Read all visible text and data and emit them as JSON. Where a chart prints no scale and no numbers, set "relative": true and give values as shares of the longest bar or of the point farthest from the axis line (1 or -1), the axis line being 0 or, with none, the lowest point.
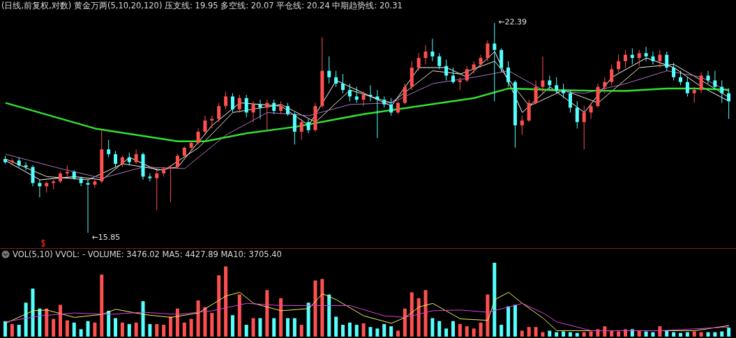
{
  "chart_data": [
    {
      "type": "candlestick",
      "title": "(日线,前复权,对数)  黄金万两(5,10,20,120)  压支线: 19.95  多空线: 20.07  平仓线: 20.24  中期趋势线: 20.31",
      "categories": [
        null,
        null,
        null,
        null,
        null,
        null,
        null,
        null,
        null,
        null,
        null,
        null,
        null,
        null,
        null,
        null,
        null,
        null,
        null,
        null,
        null,
        null,
        null,
        null,
        null,
        null,
        null,
        null,
        null,
        null,
        null,
        null,
        null,
        null,
        null,
        null,
        null,
        null,
        null,
        null,
        null,
        null,
        null,
        null,
        null,
        null,
        null,
        null,
        null,
        null,
        null,
        null,
        null,
        null,
        null,
        null,
        null,
        null,
        null,
        null,
        null,
        null,
        null,
        null,
        null,
        null,
        null,
        null,
        null,
        null,
        null,
        null,
        null,
        null,
        null,
        null,
        null,
        null,
        null,
        null,
        null,
        null,
        null,
        null,
        null,
        null,
        null,
        null,
        null,
        null,
        null,
        null,
        null,
        null,
        null,
        null,
        null,
        null,
        null,
        null,
        null,
        null,
        null,
        null,
        null,
        null
      ],
      "ohlc": [
        [
          18.15,
          18.25,
          18.0,
          18.05
        ],
        [
          18.05,
          18.15,
          17.95,
          18.1
        ],
        [
          18.1,
          18.2,
          17.9,
          17.95
        ],
        [
          17.95,
          18.05,
          17.8,
          17.9
        ],
        [
          17.9,
          17.95,
          17.3,
          17.4
        ],
        [
          17.4,
          17.5,
          16.95,
          17.3
        ],
        [
          17.3,
          17.45,
          17.1,
          17.4
        ],
        [
          17.4,
          17.5,
          17.2,
          17.45
        ],
        [
          17.45,
          17.75,
          17.4,
          17.7
        ],
        [
          17.7,
          17.95,
          17.6,
          17.75
        ],
        [
          17.75,
          17.8,
          17.5,
          17.55
        ],
        [
          17.55,
          17.6,
          17.3,
          17.4
        ],
        [
          17.4,
          17.5,
          15.85,
          17.35
        ],
        [
          17.35,
          17.5,
          17.25,
          17.45
        ],
        [
          17.45,
          19.05,
          17.4,
          18.45
        ],
        [
          18.45,
          18.75,
          18.2,
          18.3
        ],
        [
          18.3,
          18.4,
          17.9,
          18.0
        ],
        [
          18.0,
          18.25,
          17.9,
          18.2
        ],
        [
          18.2,
          18.35,
          17.95,
          18.05
        ],
        [
          18.05,
          18.45,
          18.0,
          18.3
        ],
        [
          18.3,
          18.35,
          17.5,
          17.6
        ],
        [
          17.6,
          17.7,
          17.45,
          17.55
        ],
        [
          17.55,
          17.8,
          16.55,
          17.7
        ],
        [
          17.7,
          17.9,
          17.6,
          17.85
        ],
        [
          17.85,
          17.95,
          16.8,
          17.9
        ],
        [
          17.9,
          18.3,
          17.85,
          18.25
        ],
        [
          18.25,
          18.55,
          18.2,
          18.5
        ],
        [
          18.5,
          18.7,
          18.4,
          18.65
        ],
        [
          18.65,
          19.1,
          18.6,
          19.0
        ],
        [
          19.0,
          19.5,
          18.9,
          19.35
        ],
        [
          19.35,
          19.5,
          19.1,
          19.4
        ],
        [
          19.4,
          19.9,
          19.3,
          19.8
        ],
        [
          19.8,
          20.25,
          19.7,
          20.1
        ],
        [
          20.1,
          20.2,
          19.6,
          19.7
        ],
        [
          19.7,
          20.15,
          19.6,
          20.05
        ],
        [
          20.05,
          20.15,
          19.45,
          19.6
        ],
        [
          19.6,
          19.95,
          19.3,
          19.85
        ],
        [
          19.85,
          20.0,
          19.4,
          19.75
        ],
        [
          19.75,
          20.0,
          19.05,
          19.9
        ],
        [
          19.9,
          20.0,
          19.55,
          19.65
        ],
        [
          19.65,
          19.95,
          19.55,
          19.8
        ],
        [
          19.8,
          19.9,
          19.5,
          19.55
        ],
        [
          19.55,
          19.6,
          18.6,
          19.0
        ],
        [
          19.0,
          19.4,
          18.75,
          19.3
        ],
        [
          19.3,
          19.4,
          18.95,
          19.05
        ],
        [
          19.05,
          19.9,
          19.0,
          19.8
        ],
        [
          19.8,
          21.95,
          19.75,
          20.9
        ],
        [
          20.9,
          21.35,
          20.5,
          20.7
        ],
        [
          20.7,
          20.9,
          20.4,
          20.5
        ],
        [
          20.5,
          20.8,
          20.2,
          20.3
        ],
        [
          20.3,
          20.5,
          19.95,
          20.1
        ],
        [
          20.1,
          20.4,
          19.9,
          20.0
        ],
        [
          20.0,
          20.25,
          19.8,
          20.15
        ],
        [
          20.15,
          20.45,
          19.95,
          20.1
        ],
        [
          20.1,
          20.3,
          18.8,
          20.0
        ],
        [
          20.0,
          20.1,
          19.75,
          19.85
        ],
        [
          19.85,
          20.05,
          19.5,
          19.6
        ],
        [
          19.6,
          19.95,
          19.55,
          19.9
        ],
        [
          19.9,
          20.5,
          19.85,
          20.4
        ],
        [
          20.4,
          21.2,
          20.3,
          21.0
        ],
        [
          21.0,
          21.45,
          20.9,
          21.3
        ],
        [
          21.3,
          21.7,
          21.1,
          21.5
        ],
        [
          21.5,
          21.9,
          21.2,
          21.35
        ],
        [
          21.35,
          21.45,
          20.95,
          21.05
        ],
        [
          21.05,
          21.25,
          20.6,
          20.75
        ],
        [
          20.75,
          21.0,
          20.5,
          20.55
        ],
        [
          20.55,
          20.7,
          20.3,
          20.6
        ],
        [
          20.6,
          21.05,
          20.55,
          20.95
        ],
        [
          20.95,
          21.2,
          20.8,
          21.1
        ],
        [
          21.1,
          21.4,
          21.0,
          21.3
        ],
        [
          21.3,
          21.85,
          21.2,
          21.75
        ],
        [
          21.75,
          22.39,
          19.95,
          21.55
        ],
        [
          21.55,
          21.6,
          20.85,
          21.0
        ],
        [
          21.0,
          21.2,
          20.4,
          20.55
        ],
        [
          20.55,
          20.6,
          18.5,
          19.2
        ],
        [
          19.2,
          19.5,
          18.9,
          19.35
        ],
        [
          19.35,
          20.0,
          19.3,
          19.9
        ],
        [
          19.9,
          20.6,
          19.85,
          20.4
        ],
        [
          20.4,
          21.35,
          20.2,
          20.6
        ],
        [
          20.6,
          20.75,
          20.3,
          20.45
        ],
        [
          20.45,
          20.7,
          20.2,
          20.3
        ],
        [
          20.3,
          20.5,
          20.05,
          20.2
        ],
        [
          20.2,
          20.3,
          19.6,
          19.75
        ],
        [
          19.75,
          19.95,
          19.1,
          19.3
        ],
        [
          19.3,
          19.8,
          18.45,
          19.6
        ],
        [
          19.6,
          19.9,
          19.4,
          19.8
        ],
        [
          19.8,
          20.5,
          19.75,
          20.4
        ],
        [
          20.4,
          20.7,
          20.2,
          20.55
        ],
        [
          20.55,
          21.1,
          20.45,
          20.95
        ],
        [
          20.95,
          21.4,
          20.8,
          21.2
        ],
        [
          21.2,
          21.55,
          21.0,
          21.4
        ],
        [
          21.4,
          21.6,
          21.1,
          21.3
        ],
        [
          21.3,
          21.55,
          21.05,
          21.45
        ],
        [
          21.45,
          21.65,
          21.2,
          21.35
        ],
        [
          21.35,
          21.5,
          21.1,
          21.2
        ],
        [
          21.2,
          21.55,
          21.0,
          21.4
        ],
        [
          21.4,
          21.5,
          20.9,
          21.0
        ],
        [
          21.0,
          21.15,
          20.6,
          20.7
        ],
        [
          20.7,
          20.9,
          20.45,
          20.55
        ],
        [
          20.55,
          20.7,
          20.1,
          20.2
        ],
        [
          20.2,
          20.4,
          19.9,
          20.3
        ],
        [
          20.3,
          20.85,
          20.2,
          20.75
        ],
        [
          20.75,
          20.9,
          20.5,
          20.6
        ],
        [
          20.6,
          20.9,
          20.3,
          20.4
        ],
        [
          20.4,
          20.6,
          19.9,
          20.2
        ],
        [
          20.2,
          20.35,
          19.4,
          19.95
        ]
      ],
      "colors": [
        "#54ffff",
        "#ff5050",
        "#54ffff",
        "#54ffff",
        "#54ffff",
        "#54ffff",
        "#ff5050",
        "#ff5050",
        "#ff5050",
        "#ff5050",
        "#54ffff",
        "#54ffff",
        "#54ffff",
        "#ff5050",
        "#ff5050",
        "#54ffff",
        "#54ffff",
        "#ff5050",
        "#54ffff",
        "#ff5050",
        "#54ffff",
        "#54ffff",
        "#ff5050",
        "#ff5050",
        "#ff5050",
        "#ff5050",
        "#ff5050",
        "#ff5050",
        "#ff5050",
        "#ff5050",
        "#ff5050",
        "#ff5050",
        "#ff5050",
        "#54ffff",
        "#ff5050",
        "#54ffff",
        "#ff5050",
        "#54ffff",
        "#ff5050",
        "#54ffff",
        "#ff5050",
        "#54ffff",
        "#54ffff",
        "#ff5050",
        "#54ffff",
        "#ff5050",
        "#ff5050",
        "#54ffff",
        "#54ffff",
        "#54ffff",
        "#54ffff",
        "#54ffff",
        "#ff5050",
        "#54ffff",
        "#54ffff",
        "#54ffff",
        "#54ffff",
        "#ff5050",
        "#ff5050",
        "#ff5050",
        "#ff5050",
        "#ff5050",
        "#54ffff",
        "#54ffff",
        "#54ffff",
        "#54ffff",
        "#ff5050",
        "#ff5050",
        "#ff5050",
        "#ff5050",
        "#ff5050",
        "#54ffff",
        "#54ffff",
        "#54ffff",
        "#54ffff",
        "#ff5050",
        "#ff5050",
        "#ff5050",
        "#ff5050",
        "#54ffff",
        "#54ffff",
        "#54ffff",
        "#54ffff",
        "#54ffff",
        "#ff5050",
        "#ff5050",
        "#ff5050",
        "#ff5050",
        "#ff5050",
        "#ff5050",
        "#ff5050",
        "#54ffff",
        "#ff5050",
        "#54ffff",
        "#54ffff",
        "#ff5050",
        "#54ffff",
        "#54ffff",
        "#54ffff",
        "#54ffff",
        "#ff5050",
        "#ff5050",
        "#54ffff",
        "#54ffff",
        "#54ffff",
        "#54ffff"
      ],
      "series": [
        {
          "type": "line",
          "color": "#ffffff",
          "values": [
            18.1,
            null,
            null,
            null,
            null,
            17.5,
            null,
            null,
            null,
            null,
            17.6,
            null,
            null,
            null,
            17.5,
            null,
            null,
            null,
            18.2,
            null,
            null,
            null,
            17.8,
            null,
            null,
            17.9,
            null,
            null,
            null,
            null,
            19.2,
            null,
            null,
            null,
            19.9,
            null,
            null,
            null,
            null,
            null,
            19.8,
            null,
            null,
            null,
            19.2,
            null,
            null,
            null,
            20.6,
            null,
            null,
            null,
            20.2,
            null,
            null,
            null,
            19.8,
            null,
            null,
            null,
            21.0,
            null,
            null,
            null,
            21.0,
            null,
            null,
            20.7,
            null,
            null,
            null,
            21.5,
            null,
            null,
            null,
            19.6,
            null,
            null,
            null,
            20.4,
            null,
            null,
            null,
            null,
            19.6,
            null,
            null,
            null,
            20.7,
            null,
            null,
            null,
            null,
            21.3,
            null,
            null,
            null,
            21.0,
            null,
            null,
            null,
            20.4,
            null,
            null,
            null,
            19.95
          ]
        },
        {
          "type": "line",
          "color": "#f0e6c8",
          "values": [
            18.15,
            null,
            null,
            null,
            null,
            null,
            17.6,
            null,
            null,
            null,
            null,
            null,
            17.5,
            null,
            null,
            null,
            null,
            18.0,
            null,
            null,
            null,
            null,
            null,
            17.8,
            null,
            null,
            null,
            null,
            18.5,
            null,
            null,
            null,
            null,
            19.6,
            null,
            null,
            null,
            null,
            null,
            null,
            19.85,
            null,
            null,
            null,
            null,
            19.3,
            null,
            null,
            null,
            null,
            20.3,
            null,
            null,
            null,
            null,
            null,
            19.9,
            null,
            null,
            null,
            null,
            null,
            20.9,
            null,
            null,
            null,
            20.8,
            null,
            null,
            null,
            null,
            21.2,
            null,
            null,
            null,
            null,
            19.8,
            null,
            null,
            null,
            null,
            20.3,
            null,
            null,
            null,
            null,
            19.9,
            null,
            null,
            null,
            null,
            null,
            21.0,
            null,
            null,
            null,
            null,
            21.1,
            null,
            null,
            null,
            20.6,
            null,
            null,
            null,
            20.07
          ]
        },
        {
          "type": "line",
          "color": "#b070c0",
          "values": [
            18.3,
            null,
            null,
            null,
            null,
            null,
            null,
            null,
            17.85,
            null,
            null,
            null,
            null,
            null,
            17.55,
            null,
            null,
            null,
            null,
            null,
            17.9,
            null,
            null,
            null,
            null,
            null,
            17.85,
            null,
            null,
            null,
            null,
            null,
            18.9,
            null,
            null,
            null,
            null,
            null,
            19.6,
            null,
            null,
            null,
            null,
            null,
            19.5,
            null,
            null,
            null,
            null,
            null,
            19.85,
            null,
            null,
            null,
            null,
            null,
            19.9,
            null,
            null,
            null,
            null,
            null,
            20.5,
            null,
            null,
            null,
            null,
            null,
            20.7,
            null,
            null,
            null,
            null,
            20.9,
            null,
            null,
            null,
            null,
            20.3,
            null,
            null,
            null,
            null,
            null,
            20.2,
            null,
            null,
            null,
            null,
            null,
            20.5,
            null,
            null,
            null,
            null,
            null,
            20.9,
            null,
            null,
            null,
            null,
            20.7,
            null,
            null,
            null,
            20.24
          ]
        },
        {
          "type": "line",
          "color": "#33e033",
          "values": [
            19.9,
            null,
            null,
            null,
            null,
            null,
            null,
            null,
            null,
            null,
            null,
            null,
            null,
            19.1,
            null,
            null,
            null,
            null,
            null,
            null,
            null,
            null,
            null,
            null,
            null,
            18.7,
            null,
            null,
            null,
            18.7,
            null,
            null,
            null,
            null,
            null,
            18.95,
            null,
            null,
            null,
            null,
            null,
            null,
            19.15,
            null,
            null,
            null,
            null,
            null,
            null,
            null,
            null,
            null,
            19.55,
            null,
            null,
            null,
            null,
            null,
            null,
            null,
            19.8,
            null,
            null,
            null,
            null,
            null,
            null,
            null,
            20.05,
            null,
            null,
            null,
            null,
            20.35,
            null,
            null,
            null,
            null,
            null,
            null,
            20.3,
            null,
            null,
            null,
            null,
            20.28,
            null,
            null,
            null,
            null,
            20.27,
            null,
            null,
            null,
            null,
            null,
            20.35,
            null,
            null,
            null,
            20.35,
            null,
            null,
            null,
            null,
            20.31
          ]
        }
      ],
      "annotations": [
        "←22.39",
        "←15.85"
      ],
      "legend": false
    },
    {
      "type": "bar",
      "relative": true,
      "title": "VOL(5,10)  VVOL: -   VOLUME: 3476.02  MA5: 4427.89  MA10: 3705.40",
      "categories": [
        null,
        null,
        null,
        null,
        null,
        null,
        null,
        null,
        null,
        null,
        null,
        null,
        null,
        null,
        null,
        null,
        null,
        null,
        null,
        null,
        null,
        null,
        null,
        null,
        null,
        null,
        null,
        null,
        null,
        null,
        null,
        null,
        null,
        null,
        null,
        null,
        null,
        null,
        null,
        null,
        null,
        null,
        null,
        null,
        null,
        null,
        null,
        null,
        null,
        null,
        null,
        null,
        null,
        null,
        null,
        null,
        null,
        null,
        null,
        null,
        null,
        null,
        null,
        null,
        null,
        null,
        null,
        null,
        null,
        null,
        null,
        null,
        null,
        null,
        null,
        null,
        null,
        null,
        null,
        null,
        null,
        null,
        null,
        null,
        null,
        null,
        null,
        null,
        null,
        null,
        null,
        null,
        null,
        null,
        null,
        null,
        null,
        null,
        null,
        null,
        null,
        null,
        null,
        null,
        null,
        null
      ],
      "values": [
        0.21,
        0.17,
        0.16,
        0.46,
        0.65,
        0.38,
        0.38,
        0.24,
        0.43,
        0.22,
        0.19,
        0.1,
        0.21,
        0.19,
        0.84,
        0.35,
        0.25,
        0.19,
        0.17,
        0.19,
        0.48,
        0.17,
        0.17,
        0.16,
        0.27,
        0.38,
        0.19,
        0.24,
        0.49,
        0.4,
        0.32,
        0.83,
        0.95,
        0.29,
        0.57,
        0.16,
        0.25,
        0.25,
        0.63,
        0.25,
        0.52,
        0.25,
        0.25,
        0.16,
        0.46,
        0.76,
        0.78,
        0.57,
        0.27,
        0.16,
        0.19,
        0.16,
        0.18,
        0.13,
        0.11,
        0.17,
        0.14,
        0.08,
        0.38,
        0.6,
        0.52,
        0.63,
        0.25,
        0.21,
        0.11,
        0.21,
        0.17,
        0.14,
        0.11,
        0.19,
        0.57,
        1.0,
        0.16,
        0.41,
        0.43,
        0.08,
        0.13,
        0.13,
        0.06,
        0.08,
        0.06,
        0.07,
        0.06,
        0.05,
        0.06,
        0.07,
        0.1,
        0.14,
        0.08,
        0.07,
        0.1,
        0.1,
        0.08,
        0.07,
        0.06,
        0.14,
        0.08,
        0.06,
        0.05,
        0.06,
        0.07,
        0.06,
        0.06,
        0.06,
        0.07,
        0.12
      ],
      "colors": [
        "#54ffff",
        "#ff5050",
        "#54ffff",
        "#54ffff",
        "#54ffff",
        "#54ffff",
        "#ff5050",
        "#ff5050",
        "#ff5050",
        "#ff5050",
        "#54ffff",
        "#54ffff",
        "#54ffff",
        "#ff5050",
        "#ff5050",
        "#54ffff",
        "#54ffff",
        "#ff5050",
        "#54ffff",
        "#ff5050",
        "#54ffff",
        "#54ffff",
        "#ff5050",
        "#ff5050",
        "#ff5050",
        "#ff5050",
        "#ff5050",
        "#ff5050",
        "#ff5050",
        "#ff5050",
        "#ff5050",
        "#ff5050",
        "#ff5050",
        "#54ffff",
        "#ff5050",
        "#54ffff",
        "#ff5050",
        "#54ffff",
        "#ff5050",
        "#54ffff",
        "#ff5050",
        "#54ffff",
        "#54ffff",
        "#ff5050",
        "#54ffff",
        "#ff5050",
        "#ff5050",
        "#54ffff",
        "#54ffff",
        "#54ffff",
        "#54ffff",
        "#54ffff",
        "#ff5050",
        "#54ffff",
        "#54ffff",
        "#54ffff",
        "#54ffff",
        "#ff5050",
        "#ff5050",
        "#ff5050",
        "#ff5050",
        "#ff5050",
        "#54ffff",
        "#54ffff",
        "#54ffff",
        "#54ffff",
        "#ff5050",
        "#ff5050",
        "#ff5050",
        "#ff5050",
        "#ff5050",
        "#54ffff",
        "#54ffff",
        "#54ffff",
        "#54ffff",
        "#ff5050",
        "#ff5050",
        "#ff5050",
        "#ff5050",
        "#54ffff",
        "#54ffff",
        "#54ffff",
        "#54ffff",
        "#54ffff",
        "#ff5050",
        "#ff5050",
        "#ff5050",
        "#ff5050",
        "#ff5050",
        "#ff5050",
        "#ff5050",
        "#54ffff",
        "#ff5050",
        "#54ffff",
        "#54ffff",
        "#ff5050",
        "#54ffff",
        "#54ffff",
        "#54ffff",
        "#54ffff",
        "#ff5050",
        "#ff5050",
        "#54ffff",
        "#54ffff",
        "#54ffff",
        "#54ffff"
      ],
      "series": [
        {
          "type": "line",
          "color": "#f0f060",
          "values": [
            0.18,
            null,
            null,
            null,
            0.35,
            null,
            0.36,
            null,
            null,
            null,
            0.26,
            null,
            null,
            null,
            0.3,
            null,
            0.37,
            null,
            null,
            null,
            0.3,
            null,
            null,
            null,
            0.26,
            null,
            null,
            null,
            0.32,
            null,
            null,
            null,
            0.55,
            null,
            0.6,
            null,
            0.45,
            null,
            null,
            null,
            0.35,
            null,
            null,
            null,
            0.38,
            null,
            0.58,
            null,
            0.5,
            null,
            null,
            null,
            0.28,
            null,
            null,
            null,
            0.18,
            null,
            0.26,
            null,
            0.4,
            null,
            0.45,
            null,
            null,
            null,
            0.24,
            null,
            null,
            null,
            0.22,
            0.5,
            null,
            0.6,
            null,
            0.45,
            null,
            null,
            0.25,
            null,
            0.08,
            null,
            null,
            null,
            null,
            null,
            null,
            null,
            null,
            null,
            0.08,
            null,
            null,
            null,
            null,
            null,
            null,
            null,
            null,
            null,
            0.08,
            null,
            null,
            null,
            null,
            0.15
          ]
        },
        {
          "type": "line",
          "color": "#e040e0",
          "values": [
            0.2,
            null,
            null,
            null,
            null,
            0.28,
            null,
            null,
            null,
            null,
            0.32,
            null,
            null,
            null,
            null,
            0.3,
            null,
            null,
            null,
            null,
            0.33,
            null,
            null,
            null,
            null,
            0.3,
            null,
            null,
            null,
            null,
            0.35,
            null,
            null,
            null,
            null,
            0.45,
            null,
            null,
            null,
            null,
            0.42,
            null,
            null,
            null,
            null,
            0.42,
            null,
            null,
            null,
            null,
            0.42,
            null,
            null,
            null,
            null,
            0.28,
            null,
            null,
            0.26,
            null,
            null,
            null,
            0.35,
            null,
            null,
            null,
            0.36,
            null,
            null,
            null,
            0.33,
            null,
            null,
            0.4,
            null,
            0.45,
            null,
            null,
            0.32,
            null,
            0.2,
            null,
            null,
            null,
            null,
            0.08,
            null,
            null,
            null,
            null,
            null,
            null,
            null,
            null,
            null,
            0.08,
            null,
            null,
            null,
            null,
            null,
            null,
            null,
            null,
            null,
            0.13
          ]
        }
      ],
      "legend": false
    }
  ]
}
